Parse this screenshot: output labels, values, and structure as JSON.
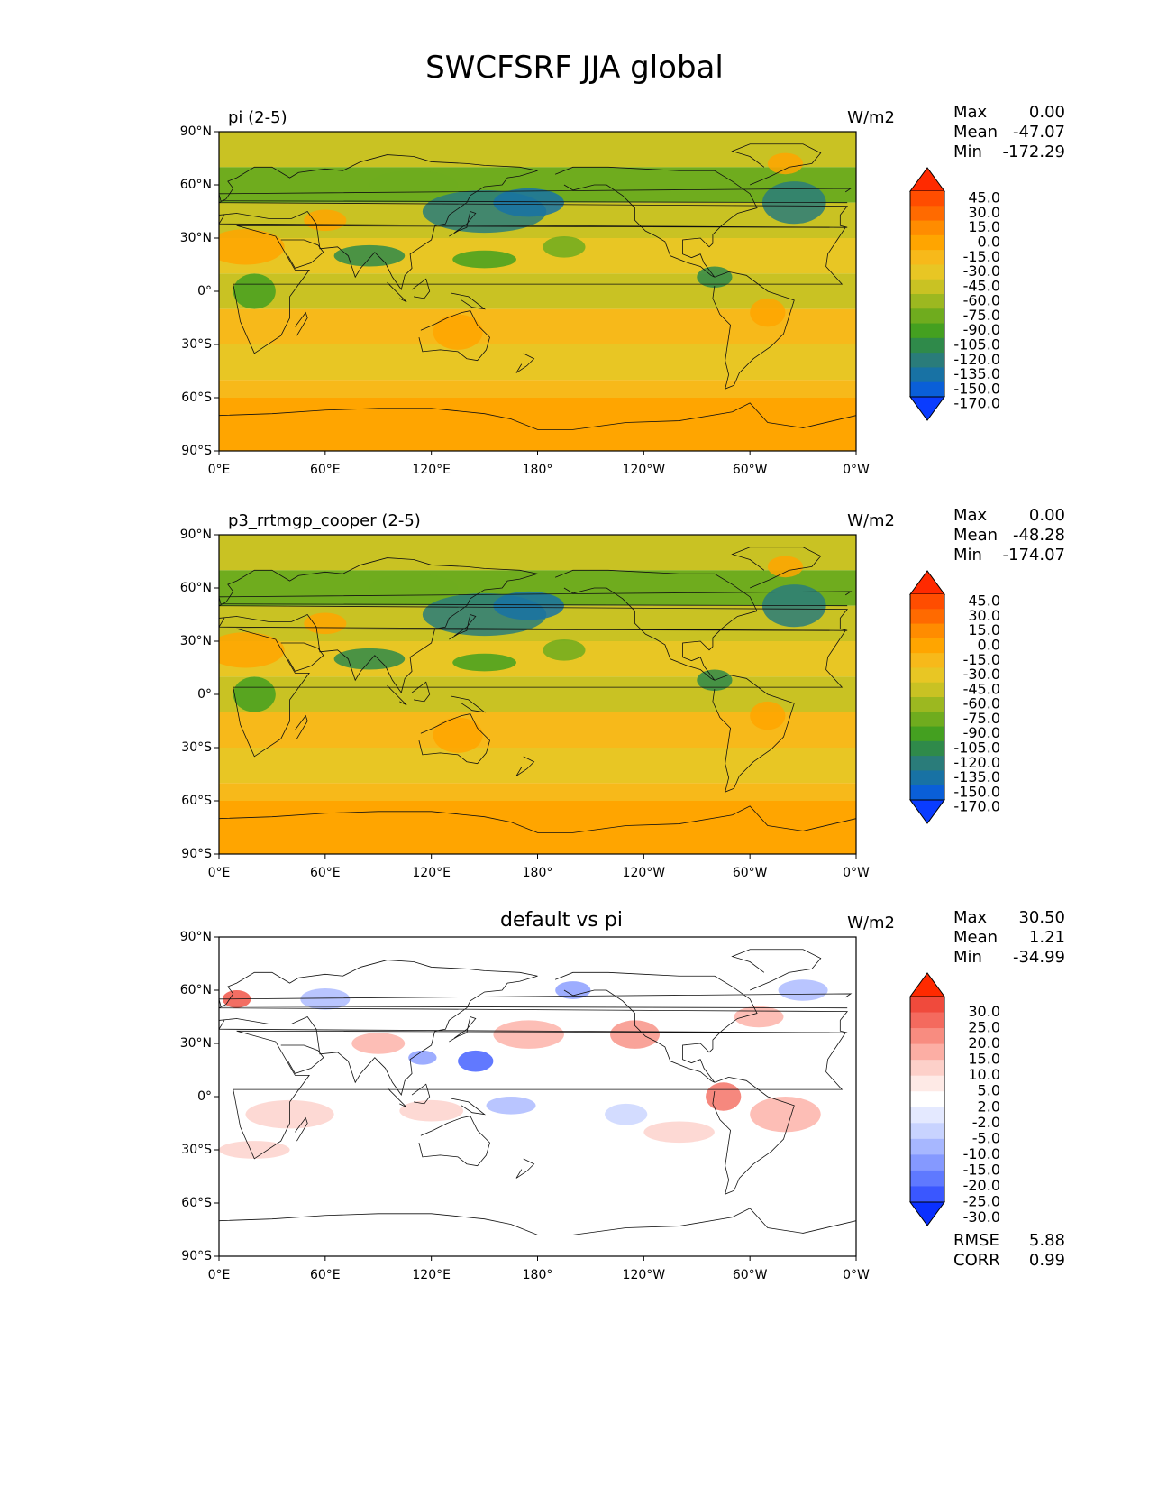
{
  "figure": {
    "title": "SWCFSRF JJA global"
  },
  "axes": {
    "lat_ticks": [
      "90°N",
      "60°N",
      "30°N",
      "0°",
      "30°S",
      "60°S",
      "90°S"
    ],
    "lon_ticks": [
      "0°E",
      "60°E",
      "120°E",
      "180°",
      "120°W",
      "60°W",
      "0°W"
    ]
  },
  "panels": [
    {
      "id": "test",
      "title_left": "pi (2-5)",
      "title_center": "",
      "units": "W/m2",
      "stats": [
        {
          "label": "Max",
          "value": "0.00"
        },
        {
          "label": "Mean",
          "value": "-47.07"
        },
        {
          "label": "Min",
          "value": "-172.29"
        }
      ],
      "colorbar": {
        "levels": [
          "45.0",
          "30.0",
          "15.0",
          "0.0",
          "-15.0",
          "-30.0",
          "-45.0",
          "-60.0",
          "-75.0",
          "-90.0",
          "-105.0",
          "-120.0",
          "-135.0",
          "-150.0",
          "-170.0"
        ],
        "colors": [
          "#ff2a00",
          "#ff4d00",
          "#ff6a00",
          "#ff8c00",
          "#ffa500",
          "#f7b91a",
          "#e8c624",
          "#c9c223",
          "#9cb820",
          "#6fac1e",
          "#44a020",
          "#2f8a4a",
          "#2a7c7a",
          "#1872a4",
          "#0a5fd8",
          "#0a3cff"
        ]
      }
    },
    {
      "id": "reference",
      "title_left": "p3_rrtmgp_cooper (2-5)",
      "title_center": "",
      "units": "W/m2",
      "stats": [
        {
          "label": "Max",
          "value": "0.00"
        },
        {
          "label": "Mean",
          "value": "-48.28"
        },
        {
          "label": "Min",
          "value": "-174.07"
        }
      ],
      "colorbar": {
        "levels": [
          "45.0",
          "30.0",
          "15.0",
          "0.0",
          "-15.0",
          "-30.0",
          "-45.0",
          "-60.0",
          "-75.0",
          "-90.0",
          "-105.0",
          "-120.0",
          "-135.0",
          "-150.0",
          "-170.0"
        ],
        "colors": [
          "#ff2a00",
          "#ff4d00",
          "#ff6a00",
          "#ff8c00",
          "#ffa500",
          "#f7b91a",
          "#e8c624",
          "#c9c223",
          "#9cb820",
          "#6fac1e",
          "#44a020",
          "#2f8a4a",
          "#2a7c7a",
          "#1872a4",
          "#0a5fd8",
          "#0a3cff"
        ]
      }
    },
    {
      "id": "diff",
      "title_left": "",
      "title_center": "default vs pi",
      "units": "W/m2",
      "stats": [
        {
          "label": "Max",
          "value": "30.50"
        },
        {
          "label": "Mean",
          "value": "1.21"
        },
        {
          "label": "Min",
          "value": "-34.99"
        }
      ],
      "metrics": [
        {
          "label": "RMSE",
          "value": "5.88"
        },
        {
          "label": "CORR",
          "value": "0.99"
        }
      ],
      "colorbar": {
        "levels": [
          "30.0",
          "25.0",
          "20.0",
          "15.0",
          "10.0",
          "5.0",
          "2.0",
          "-2.0",
          "-5.0",
          "-10.0",
          "-15.0",
          "-20.0",
          "-25.0",
          "-30.0"
        ],
        "colors": [
          "#ff2a00",
          "#f04a3c",
          "#f46a5e",
          "#f88c80",
          "#fcaea4",
          "#fdd0c9",
          "#feeae6",
          "#ffffff",
          "#e4e9ff",
          "#c8d3ff",
          "#a7b7ff",
          "#8599ff",
          "#5f79ff",
          "#3a57ff",
          "#0a30ff"
        ]
      }
    }
  ]
}
